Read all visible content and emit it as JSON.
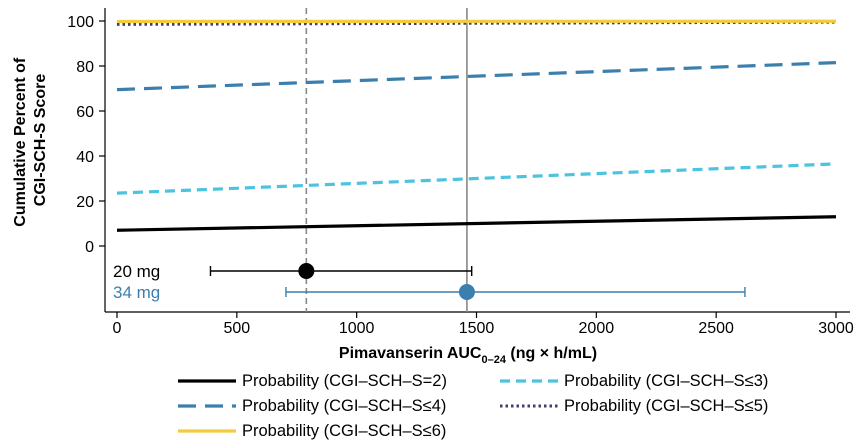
{
  "chart_data": {
    "type": "line",
    "xlabel": "Pimavanserin AUC",
    "xlabel_sub": "0–24",
    "xlabel_units": " (ng × h/mL)",
    "ylabel_lines": [
      "Cumulative Percent of",
      "CGI-SCH-S Score"
    ],
    "xlim": [
      0,
      3000
    ],
    "ylim": [
      0,
      100
    ],
    "x_ticks": [
      0,
      500,
      1000,
      1500,
      2000,
      2500,
      3000
    ],
    "y_ticks": [
      0,
      20,
      40,
      60,
      80,
      100
    ],
    "grid": false,
    "legend_position": "bottom",
    "series": [
      {
        "name": "Probability (CGI–SCH–S=2)",
        "color": "#000000",
        "dash": "solid",
        "x": [
          0,
          3000
        ],
        "y": [
          7,
          13
        ]
      },
      {
        "name": "Probability (CGI–SCH–S≤3)",
        "color": "#4cc3e0",
        "dash": "dashed",
        "x": [
          0,
          3000
        ],
        "y": [
          23.5,
          36.5
        ]
      },
      {
        "name": "Probability (CGI–SCH–S≤4)",
        "color": "#3a7fae",
        "dash": "longdash",
        "x": [
          0,
          3000
        ],
        "y": [
          69.5,
          81.5
        ]
      },
      {
        "name": "Probability (CGI–SCH–S≤5)",
        "color": "#3d3f6e",
        "dash": "dotted",
        "x": [
          0,
          3000
        ],
        "y": [
          98.5,
          99.5
        ]
      },
      {
        "name": "Probability (CGI–SCH–S≤6)",
        "color": "#f3cb3c",
        "dash": "solid",
        "x": [
          0,
          3000
        ],
        "y": [
          99.8,
          99.9
        ]
      }
    ],
    "reference_lines": [
      {
        "x": 790,
        "style": "dashed",
        "color": "#888888"
      },
      {
        "x": 1460,
        "style": "solid",
        "color": "#888888"
      }
    ],
    "dose_ranges": [
      {
        "label": "20 mg",
        "color": "#000000",
        "point": 790,
        "low": 390,
        "high": 1480
      },
      {
        "label": "34 mg",
        "color": "#3a7fae",
        "point": 1460,
        "low": 705,
        "high": 2620
      }
    ]
  }
}
